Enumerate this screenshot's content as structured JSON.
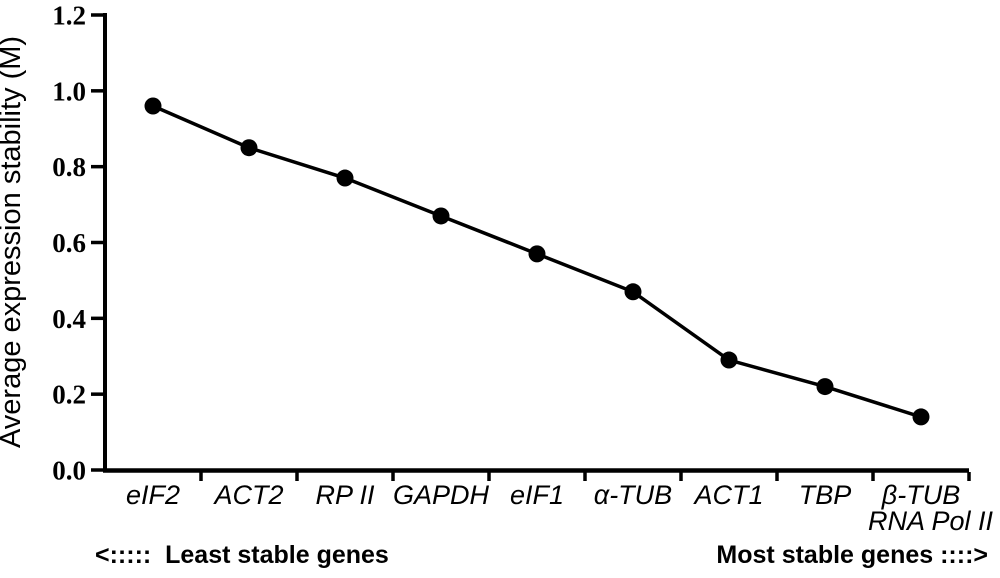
{
  "colors": {
    "ink": "#000000",
    "background": "#ffffff"
  },
  "chart_data": {
    "type": "line",
    "title": "",
    "xlabel": "",
    "ylabel": "Average expression stability (M)",
    "categories": [
      "eIF2",
      "ACT2",
      "RP II",
      "GAPDH",
      "eIF1",
      "α-TUB",
      "ACT1",
      "TBP",
      "β-TUB"
    ],
    "values": [
      0.96,
      0.85,
      0.77,
      0.67,
      0.57,
      0.47,
      0.29,
      0.22,
      0.14
    ],
    "last_category_sublabel": "RNA Pol II",
    "yticks": [
      "0.0",
      "0.2",
      "0.4",
      "0.6",
      "0.8",
      "1.0",
      "1.2"
    ],
    "ylim": [
      0.0,
      1.2
    ],
    "grid": false,
    "legend": false,
    "marker": "filled-circle",
    "annotations": {
      "left": "<:::::  Least stable genes",
      "right": "Most stable genes ::::>"
    }
  }
}
